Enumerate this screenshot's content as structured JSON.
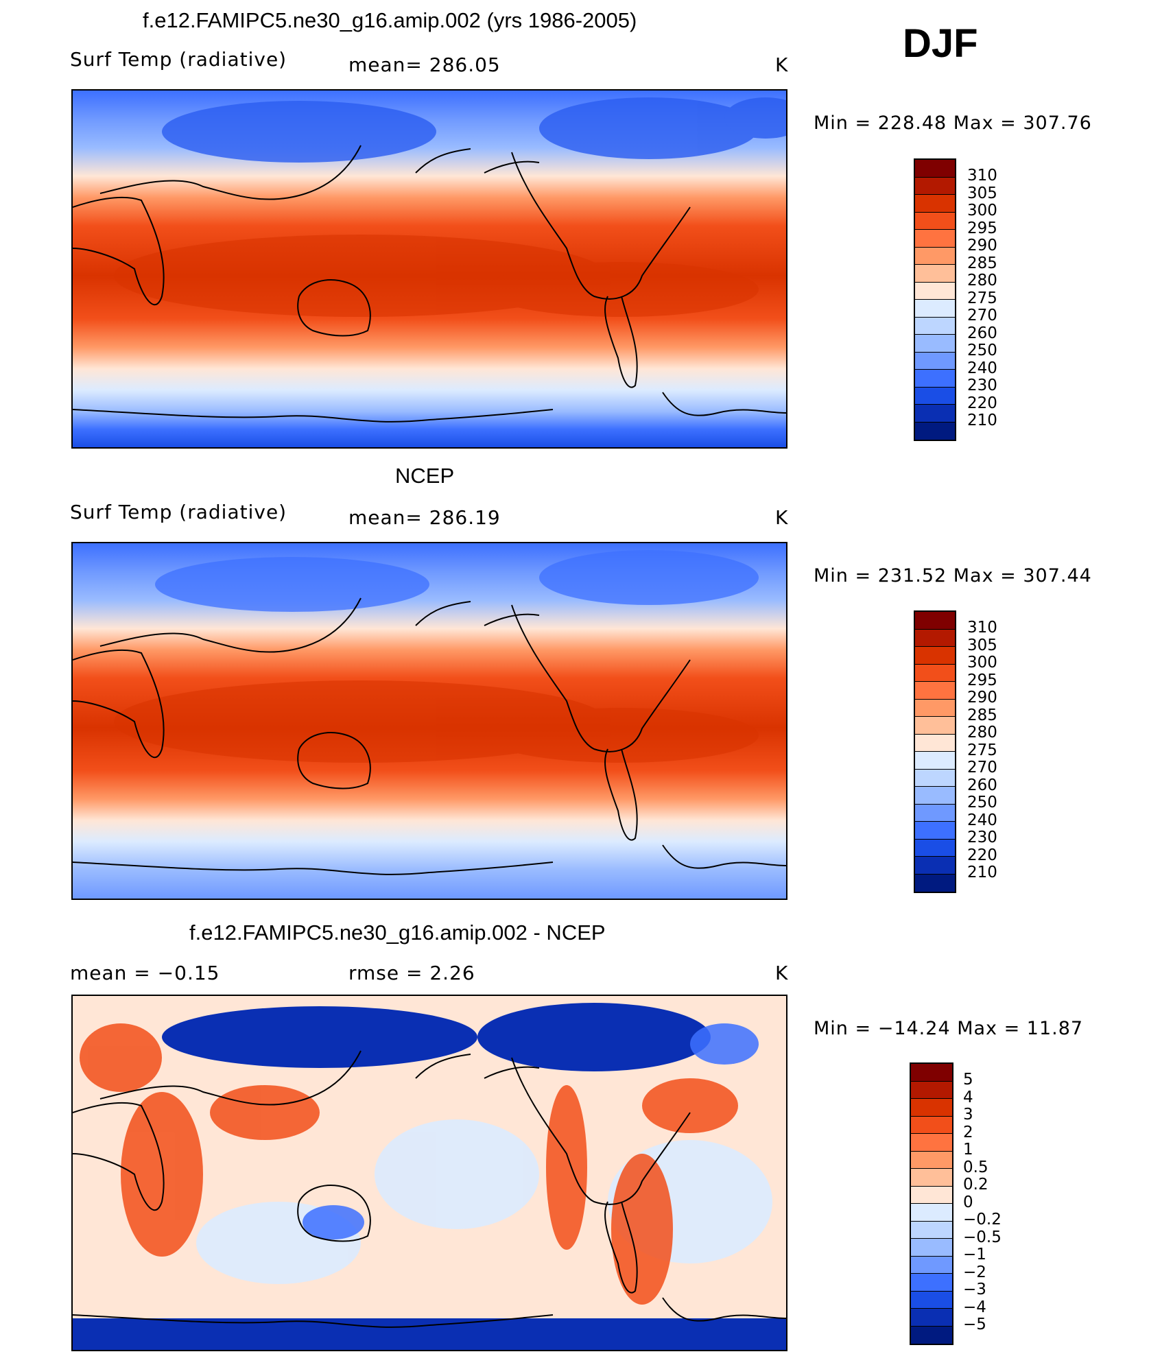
{
  "season": "DJF",
  "panels": [
    {
      "title": "f.e12.FAMIPC5.ne30_g16.amip.002 (yrs 1986-2005)",
      "left_label": "Surf Temp (radiative)",
      "center_label": "mean= 286.05",
      "units": "K",
      "minmax": "Min = 228.48 Max = 307.76",
      "levels": [
        "310",
        "305",
        "300",
        "295",
        "290",
        "285",
        "280",
        "275",
        "270",
        "260",
        "250",
        "240",
        "230",
        "220",
        "210"
      ],
      "colors": [
        "#7f0000",
        "#b31900",
        "#d93300",
        "#f24f1a",
        "#ff7340",
        "#ff9966",
        "#ffbf99",
        "#ffe6d6",
        "#dcebff",
        "#bdd6ff",
        "#99bbff",
        "#6f99ff",
        "#3d70ff",
        "#1a4ee6",
        "#0a2fb3",
        "#001a80"
      ]
    },
    {
      "title": "NCEP",
      "left_label": "Surf Temp (radiative)",
      "center_label": "mean= 286.19",
      "units": "K",
      "minmax": "Min = 231.52 Max = 307.44",
      "levels": [
        "310",
        "305",
        "300",
        "295",
        "290",
        "285",
        "280",
        "275",
        "270",
        "260",
        "250",
        "240",
        "230",
        "220",
        "210"
      ],
      "colors": [
        "#7f0000",
        "#b31900",
        "#d93300",
        "#f24f1a",
        "#ff7340",
        "#ff9966",
        "#ffbf99",
        "#ffe6d6",
        "#dcebff",
        "#bdd6ff",
        "#99bbff",
        "#6f99ff",
        "#3d70ff",
        "#1a4ee6",
        "#0a2fb3",
        "#001a80"
      ]
    },
    {
      "title": "f.e12.FAMIPC5.ne30_g16.amip.002 - NCEP",
      "left_label": "mean = −0.15",
      "center_label": "rmse = 2.26",
      "units": "K",
      "minmax": "Min = −14.24 Max = 11.87",
      "levels": [
        "5",
        "4",
        "3",
        "2",
        "1",
        "0.5",
        "0.2",
        "0",
        "−0.2",
        "−0.5",
        "−1",
        "−2",
        "−3",
        "−4",
        "−5"
      ],
      "colors": [
        "#7f0000",
        "#b31900",
        "#d93300",
        "#f24f1a",
        "#ff7340",
        "#ff9966",
        "#ffbf99",
        "#ffe6d6",
        "#dcebff",
        "#bdd6ff",
        "#99bbff",
        "#6f99ff",
        "#3d70ff",
        "#1a4ee6",
        "#0a2fb3",
        "#001a80"
      ]
    }
  ]
}
